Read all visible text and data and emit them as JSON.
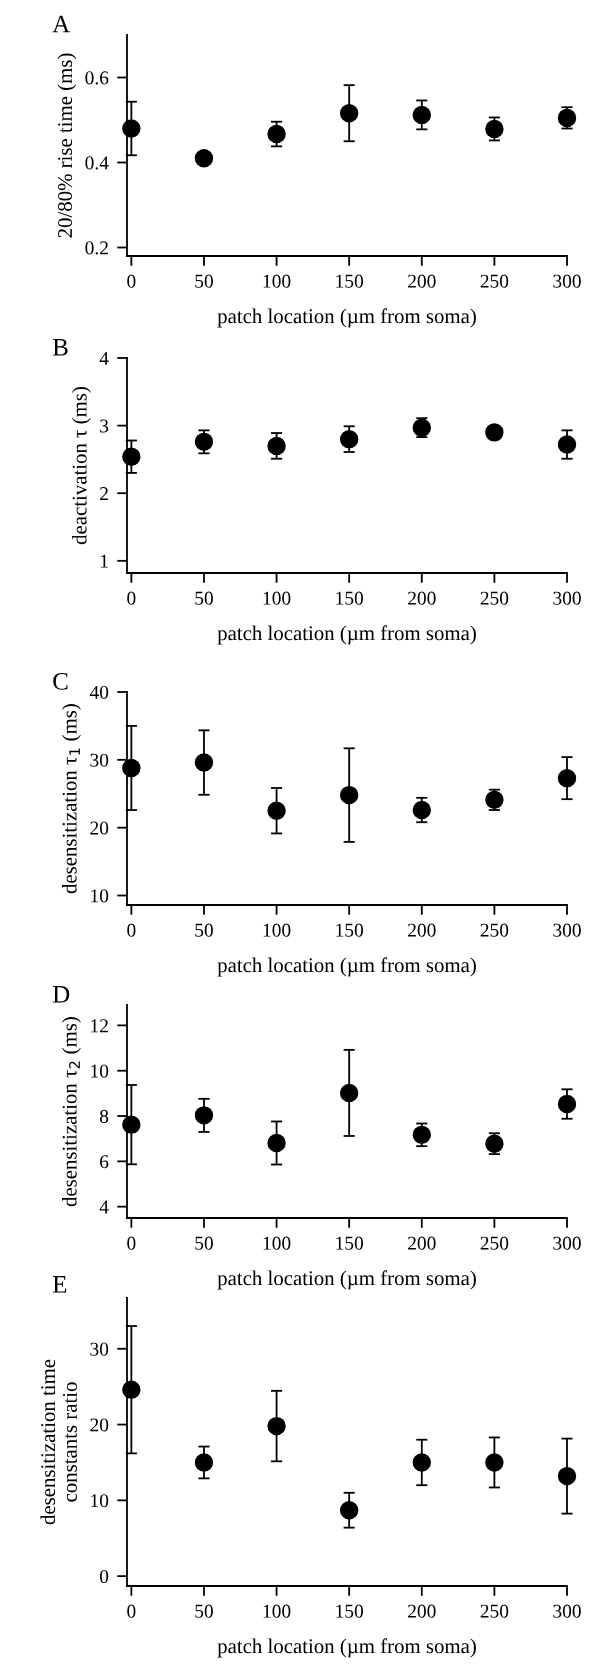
{
  "chart_data": [
    {
      "type": "scatter",
      "title": "A",
      "xlabel": "patch location (µm from soma)",
      "ylabel": "20/80% rise time (ms)",
      "x": [
        0,
        50,
        100,
        150,
        200,
        250,
        300
      ],
      "xlim": [
        -3,
        300
      ],
      "xticks": [
        0,
        50,
        100,
        150,
        200,
        250,
        300
      ],
      "ylim": [
        0.18,
        0.7
      ],
      "yticks": [
        0.2,
        0.4,
        0.6
      ],
      "marker": "circle",
      "grid": false,
      "legend": false,
      "series": [
        {
          "color": "#000000",
          "values": [
            0.48,
            0.41,
            0.467,
            0.516,
            0.512,
            0.479,
            0.505
          ],
          "errors": [
            0.063,
            0.01,
            0.029,
            0.066,
            0.034,
            0.027,
            0.025
          ]
        }
      ]
    },
    {
      "type": "scatter",
      "title": "B",
      "xlabel": "patch location (µm from soma)",
      "ylabel": "deactivation τ (ms)",
      "x": [
        0,
        50,
        100,
        150,
        200,
        250,
        300
      ],
      "xlim": [
        -3,
        300
      ],
      "xticks": [
        0,
        50,
        100,
        150,
        200,
        250,
        300
      ],
      "ylim": [
        0.82,
        4
      ],
      "yticks": [
        1,
        2,
        3,
        4
      ],
      "marker": "circle",
      "grid": false,
      "legend": false,
      "series": [
        {
          "color": "#000000",
          "values": [
            2.54,
            2.76,
            2.7,
            2.8,
            2.97,
            2.9,
            2.72
          ],
          "errors": [
            0.24,
            0.17,
            0.19,
            0.19,
            0.14,
            0.05,
            0.21
          ]
        }
      ]
    },
    {
      "type": "scatter",
      "title": "C",
      "xlabel": "patch location (µm from soma)",
      "ylabel": "desensitization τ$_{1}$ (ms)",
      "x": [
        0,
        50,
        100,
        150,
        200,
        250,
        300
      ],
      "xlim": [
        -3,
        300
      ],
      "xticks": [
        0,
        50,
        100,
        150,
        200,
        250,
        300
      ],
      "ylim": [
        8.6,
        40
      ],
      "yticks": [
        10,
        20,
        30,
        40
      ],
      "marker": "circle",
      "grid": false,
      "legend": false,
      "series": [
        {
          "color": "#000000",
          "values": [
            28.8,
            29.6,
            22.5,
            24.8,
            22.6,
            24.1,
            27.3
          ],
          "errors": [
            6.2,
            4.75,
            3.35,
            6.9,
            1.8,
            1.5,
            3.1
          ]
        }
      ]
    },
    {
      "type": "scatter",
      "title": "D",
      "xlabel": "patch location (µm from soma)",
      "ylabel": "desensitization τ$_{2}$ (ms)",
      "x": [
        0,
        50,
        100,
        150,
        200,
        250,
        300
      ],
      "xlim": [
        -3,
        300
      ],
      "xticks": [
        0,
        50,
        100,
        150,
        200,
        250,
        300
      ],
      "ylim": [
        3.5,
        12.9
      ],
      "yticks": [
        4,
        6,
        8,
        10,
        12
      ],
      "marker": "circle",
      "grid": false,
      "legend": false,
      "series": [
        {
          "color": "#000000",
          "values": [
            7.62,
            8.03,
            6.81,
            9.02,
            7.17,
            6.78,
            8.53
          ],
          "errors": [
            1.75,
            0.73,
            0.95,
            1.9,
            0.5,
            0.46,
            0.65
          ]
        }
      ]
    },
    {
      "type": "scatter",
      "title": "E",
      "xlabel": "patch location (µm from soma)",
      "ylabel": "desensitization time\nconstants ratio",
      "x": [
        0,
        50,
        100,
        150,
        200,
        250,
        300
      ],
      "xlim": [
        -3,
        300
      ],
      "xticks": [
        0,
        50,
        100,
        150,
        200,
        250,
        300
      ],
      "ylim": [
        -1.3,
        36.7
      ],
      "yticks": [
        0,
        10,
        20,
        30
      ],
      "marker": "circle",
      "grid": false,
      "legend": false,
      "series": [
        {
          "color": "#000000",
          "values": [
            24.6,
            15.0,
            19.8,
            8.7,
            15.0,
            15.0,
            13.2
          ],
          "errors": [
            8.4,
            2.1,
            4.65,
            2.3,
            3.0,
            3.3,
            4.95
          ]
        }
      ]
    }
  ]
}
